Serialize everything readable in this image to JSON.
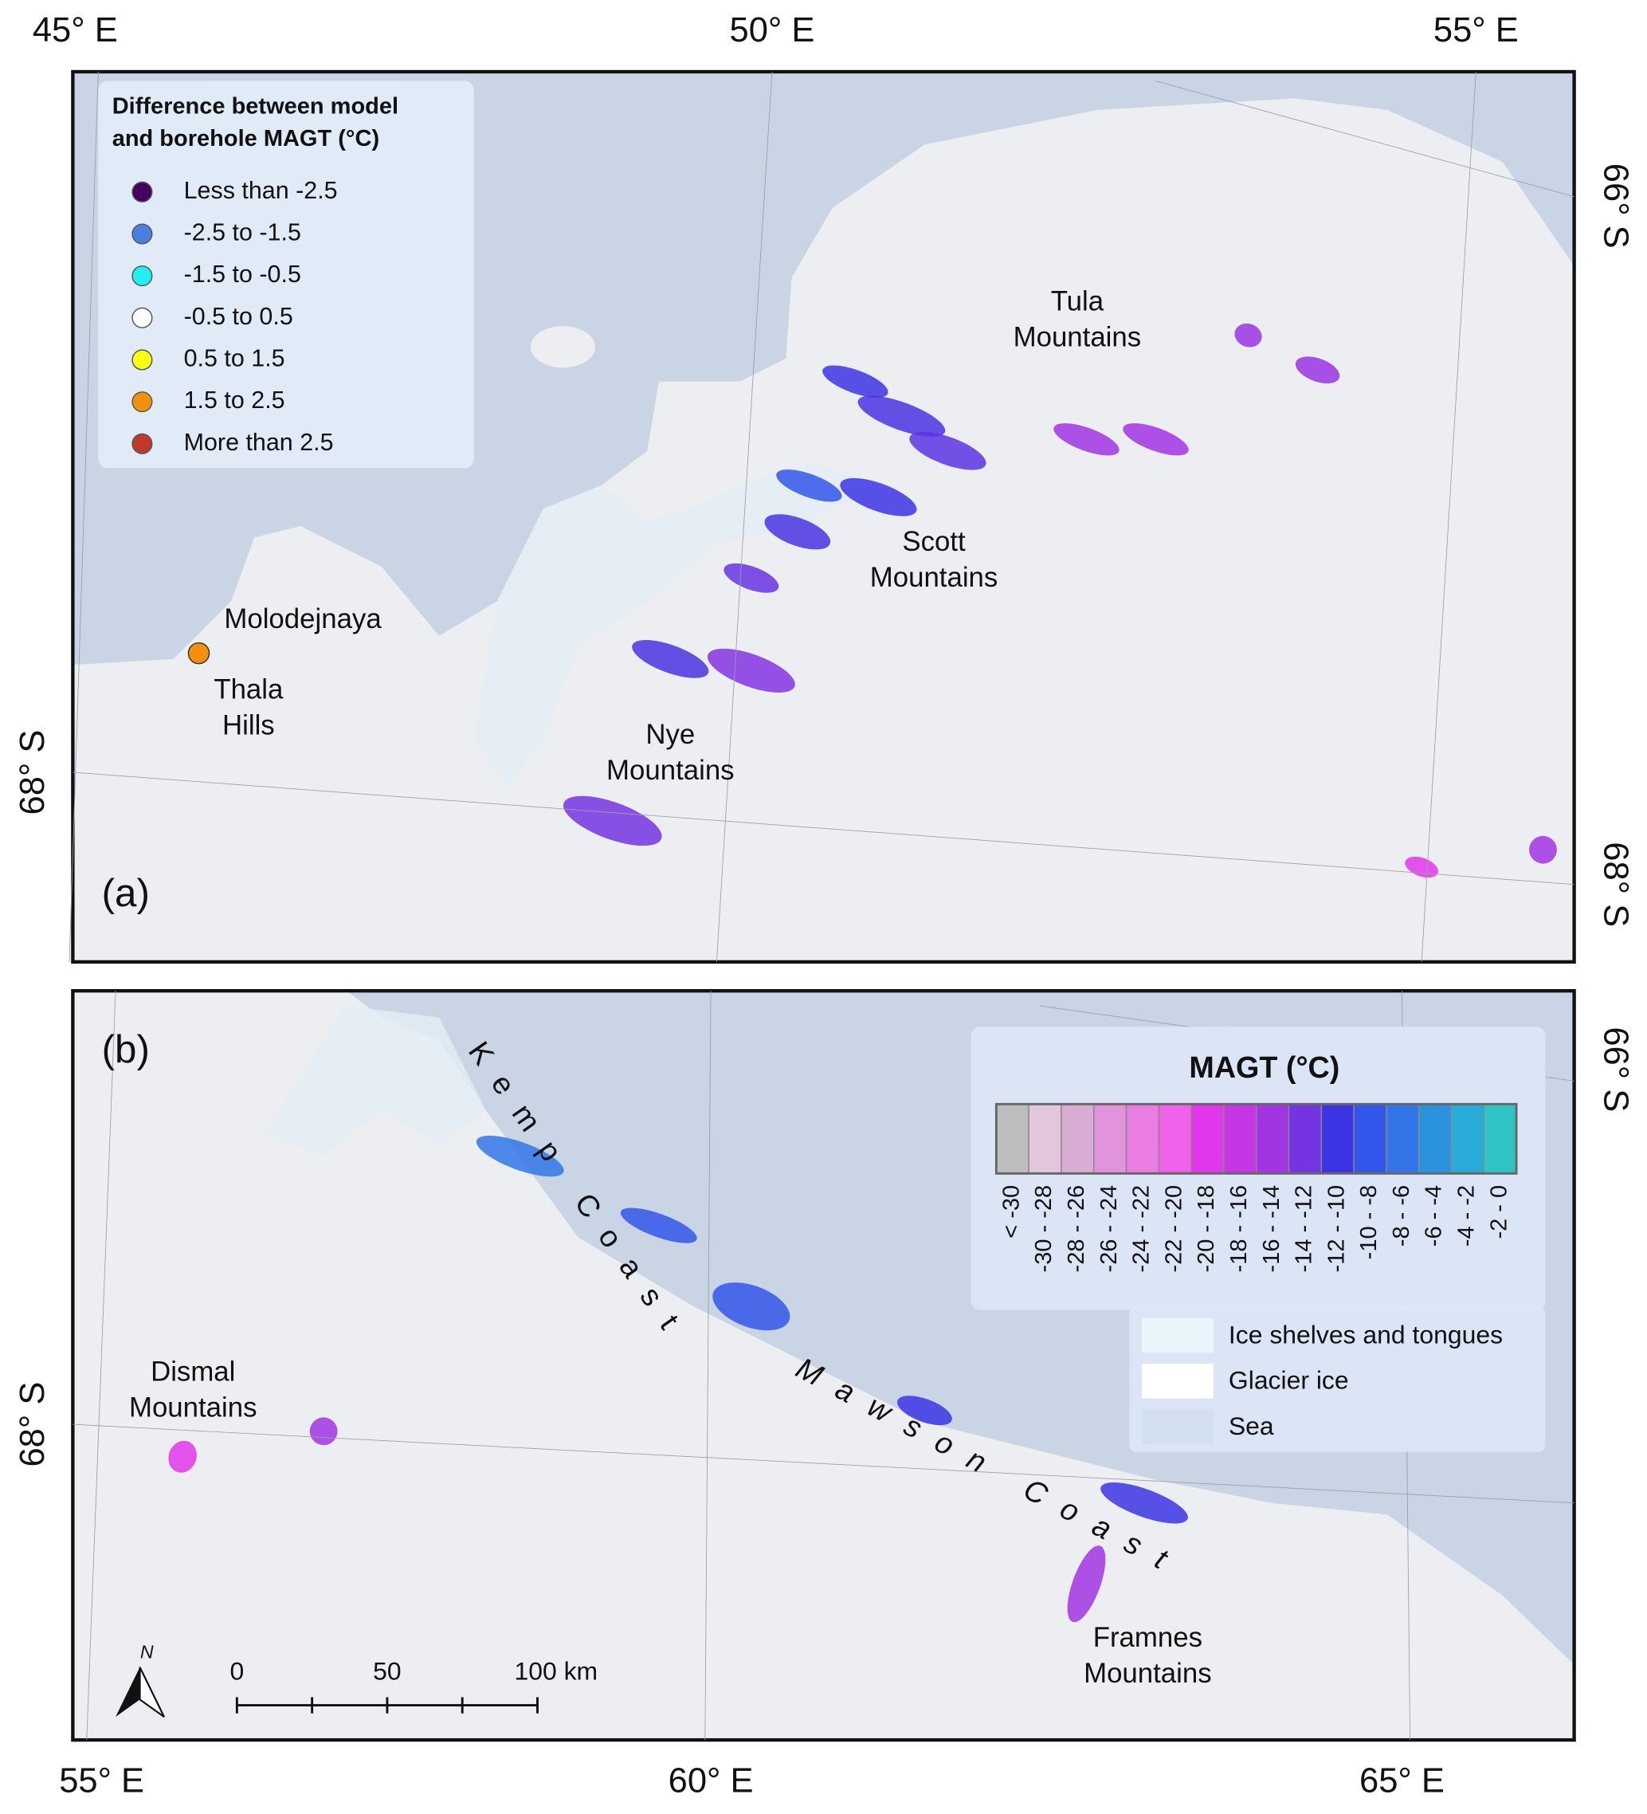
{
  "panel_a": {
    "label": "(a)",
    "axis_labels": {
      "top": [
        "45° E",
        "50° E",
        "55° E"
      ],
      "left": [
        "68° S"
      ],
      "right": [
        "66° S",
        "68° S"
      ]
    },
    "legend": {
      "title": [
        "Difference between model",
        "and borehole MAGT (°C)"
      ],
      "items": [
        {
          "label": "Less than -2.5",
          "color": "#45005e"
        },
        {
          "label": "-2.5 to -1.5",
          "color": "#4a7fe0"
        },
        {
          "label": "-1.5 to -0.5",
          "color": "#22f0f0"
        },
        {
          "label": "-0.5 to 0.5",
          "color": "#ffffff"
        },
        {
          "label": "0.5 to 1.5",
          "color": "#ffff10"
        },
        {
          "label": "1.5 to 2.5",
          "color": "#f5900f"
        },
        {
          "label": "More than 2.5",
          "color": "#c0392b"
        }
      ]
    },
    "places": [
      {
        "lines": [
          "Tula",
          "Mountains"
        ]
      },
      {
        "lines": [
          "Scott",
          "Mountains"
        ]
      },
      {
        "lines": [
          "Nye",
          "Mountains"
        ]
      },
      {
        "lines": [
          "Molodejnaya"
        ]
      },
      {
        "lines": [
          "Thala",
          "Hills"
        ]
      }
    ]
  },
  "panel_b": {
    "label": "(b)",
    "axis_labels": {
      "bottom": [
        "55° E",
        "60° E",
        "65° E"
      ],
      "left": [
        "68° S"
      ],
      "right": [
        "66° S"
      ]
    },
    "legend": {
      "title": "MAGT (°C)",
      "bins": [
        {
          "label": "< -30",
          "color": "#bdbdbd"
        },
        {
          "label": "-30 - -28",
          "color": "#e2c6dc"
        },
        {
          "label": "-28 - -26",
          "color": "#d9acd3"
        },
        {
          "label": "-26 - -24",
          "color": "#e194dc"
        },
        {
          "label": "-24 - -22",
          "color": "#ea7de2"
        },
        {
          "label": "-22 - -20",
          "color": "#f062ea"
        },
        {
          "label": "-20 - -18",
          "color": "#e236ea"
        },
        {
          "label": "-18 - -16",
          "color": "#c536e4"
        },
        {
          "label": "-16 - -14",
          "color": "#a234e3"
        },
        {
          "label": "-14 - -12",
          "color": "#7434e2"
        },
        {
          "label": "-12 - -10",
          "color": "#3c34e4"
        },
        {
          "label": "-10 - -8",
          "color": "#3356ea"
        },
        {
          "label": "-8 - -6",
          "color": "#3275e8"
        },
        {
          "label": "-6 - -4",
          "color": "#2a93de"
        },
        {
          "label": "-4 - -2",
          "color": "#28abd6"
        },
        {
          "label": "-2 - 0",
          "color": "#2fc4c4"
        }
      ],
      "surfaces": [
        {
          "label": "Ice shelves and tongues",
          "color": "#eaf5fb"
        },
        {
          "label": "Glacier ice",
          "color": "#ffffff"
        },
        {
          "label": "Sea",
          "color": "#d3e0ef"
        }
      ]
    },
    "places": [
      {
        "lines": [
          "Dismal",
          "Mountains"
        ]
      },
      {
        "lines": [
          "Framnes",
          "Mountains"
        ]
      }
    ],
    "coasts": [
      "Kemp Coast",
      "Mawson Coast"
    ],
    "scale_bar": [
      "0",
      "50",
      "100 km"
    ],
    "north": "N"
  }
}
